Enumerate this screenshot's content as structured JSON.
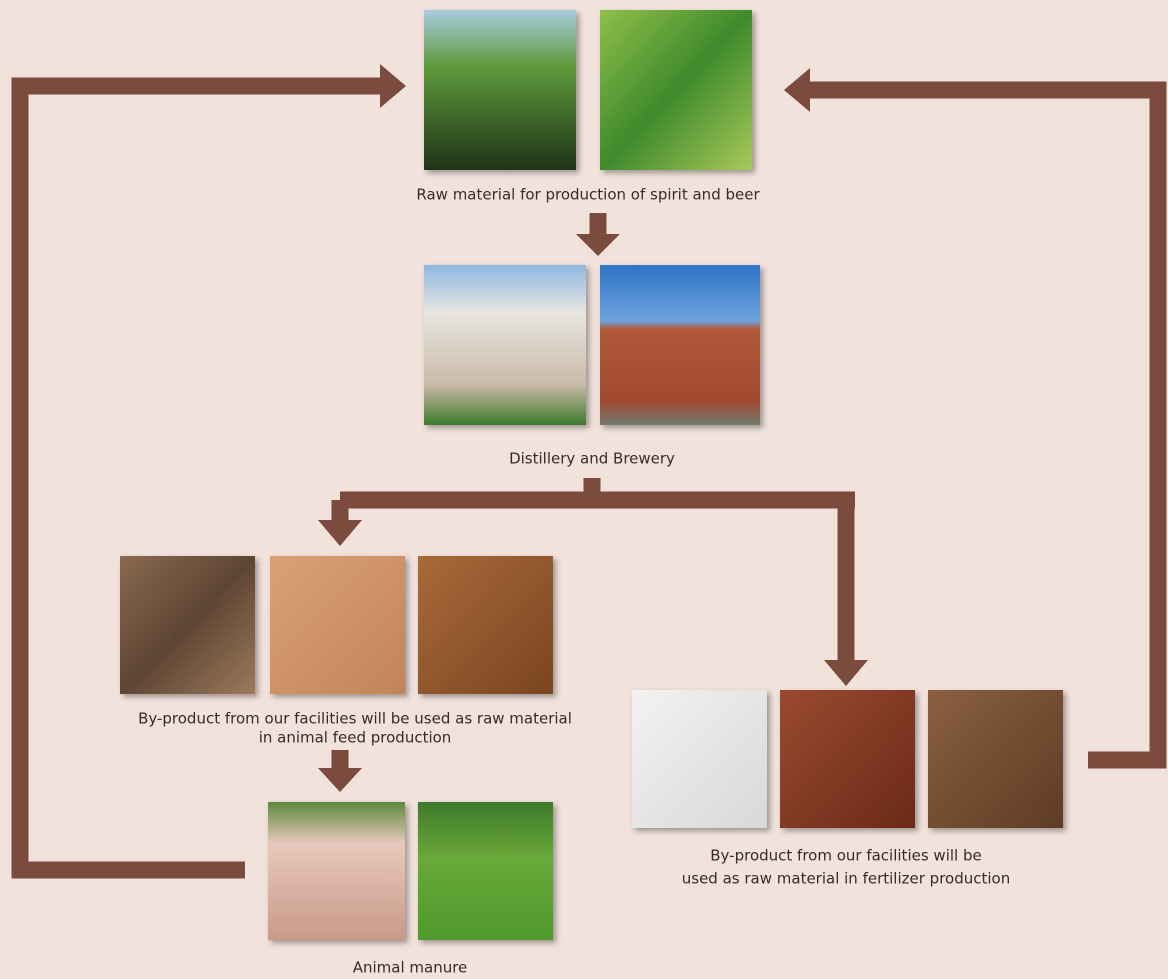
{
  "nodes": [
    {
      "label_lines": [
        "Raw material for production of spirit and beer"
      ]
    },
    {
      "label_lines": [
        "Distillery and Brewery"
      ]
    },
    {
      "label_lines": [
        "By-product from our facilities will be used as raw material",
        "in animal feed production"
      ]
    },
    {
      "label_lines": [
        "Animal manure"
      ]
    },
    {
      "label_lines": [
        "By-product from our facilities will be",
        "used as raw material in fertilizer production"
      ]
    }
  ]
}
